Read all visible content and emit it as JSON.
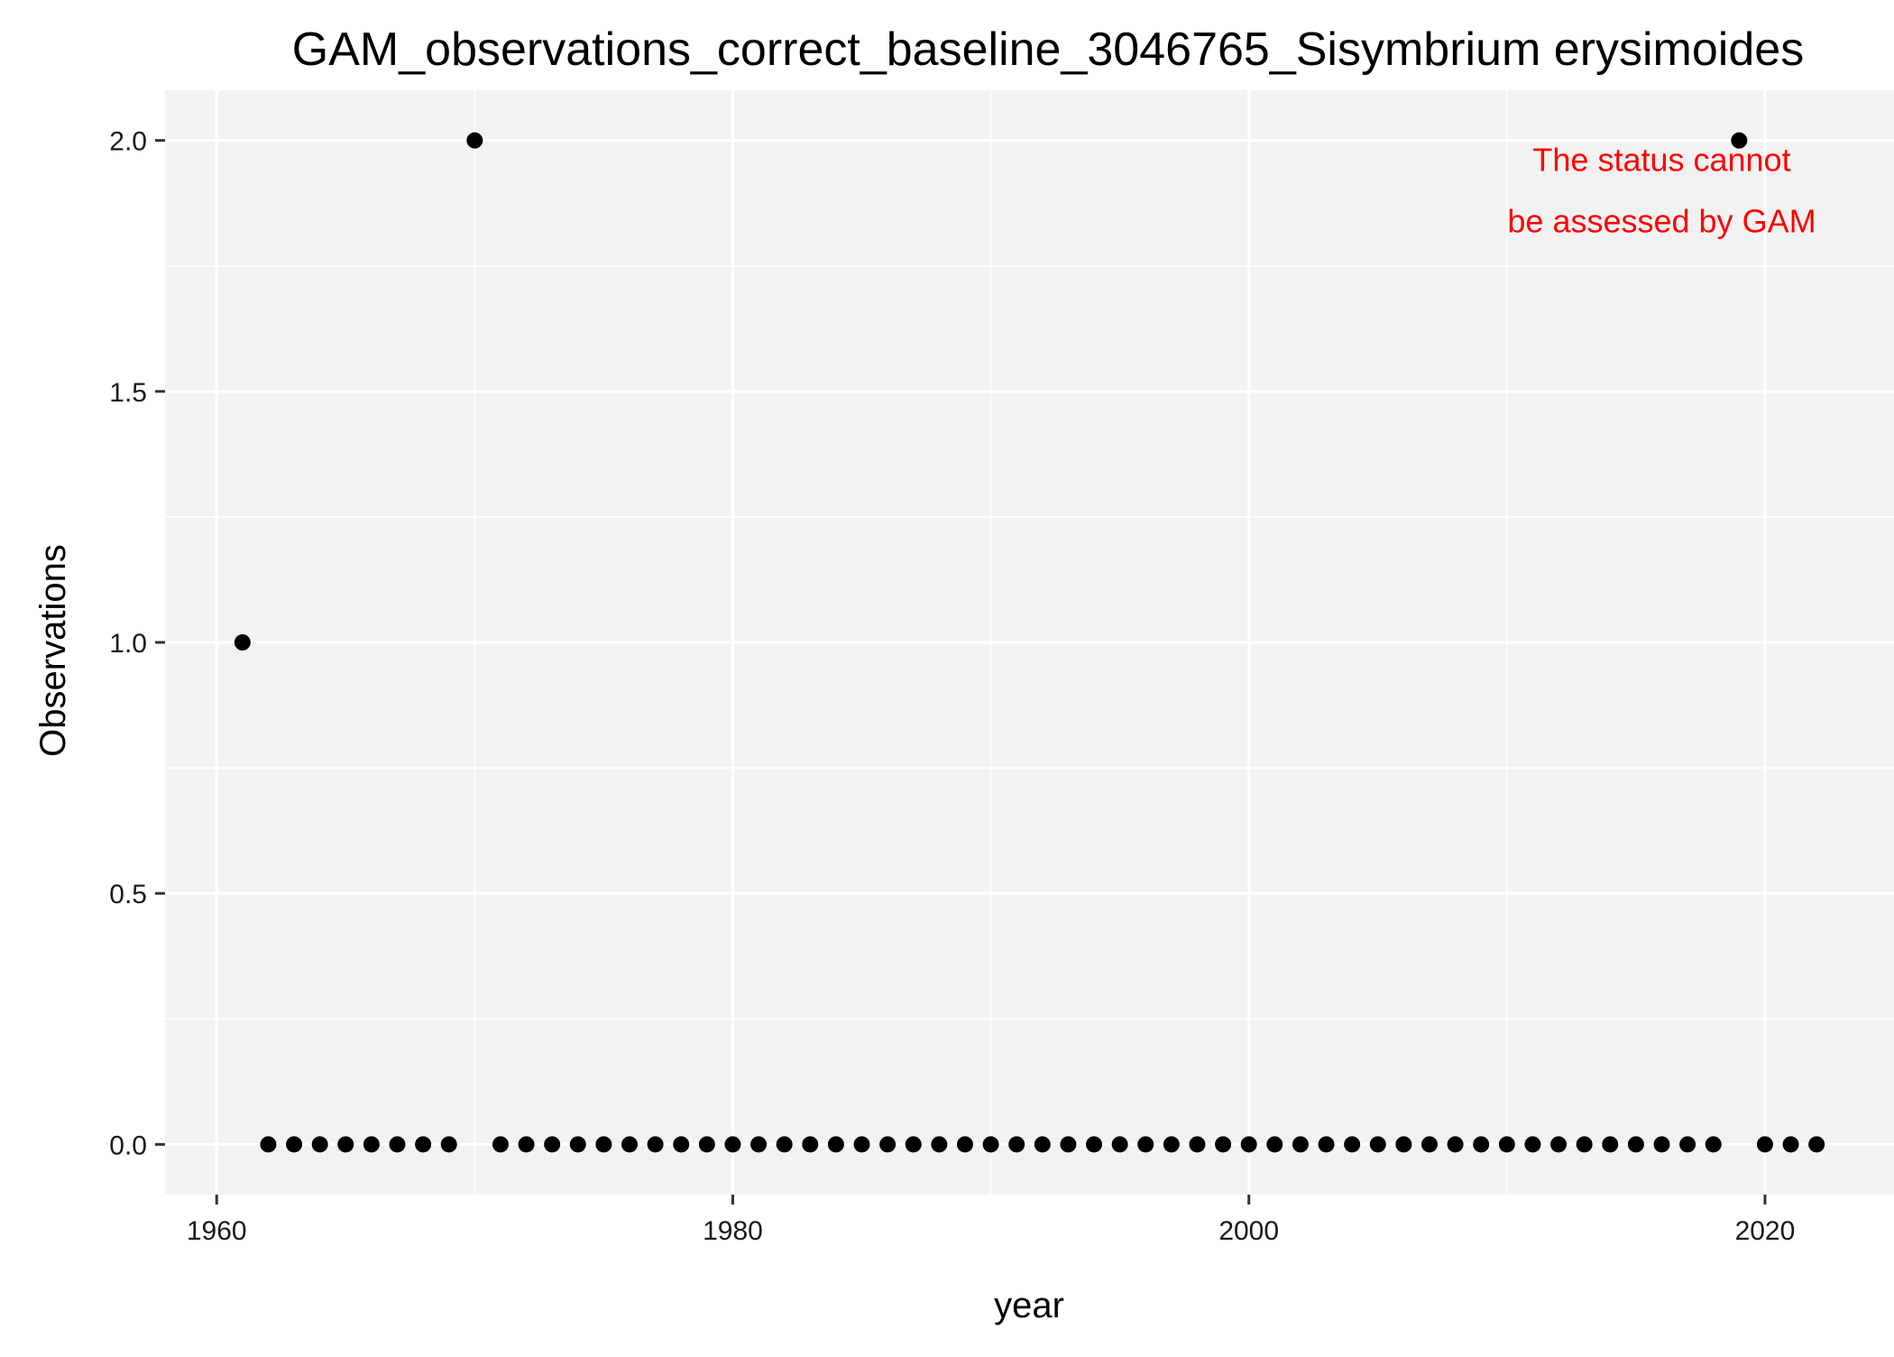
{
  "chart_data": {
    "type": "scatter",
    "title": "GAM_observations_correct_baseline_3046765_Sisymbrium erysimoides",
    "xlabel": "year",
    "ylabel": "Observations",
    "xlim": [
      1958,
      2025
    ],
    "ylim": [
      -0.1,
      2.1
    ],
    "x_ticks": [
      1960,
      1980,
      2000,
      2020
    ],
    "x_tick_labels": [
      "1960",
      "1980",
      "2000",
      "2020"
    ],
    "y_ticks": [
      0,
      0.5,
      1,
      1.5,
      2
    ],
    "y_tick_labels": [
      "0.0",
      "0.5",
      "1.0",
      "1.5",
      "2.0"
    ],
    "grid": true,
    "background": "#f2f2f2",
    "grid_color": "#ffffff",
    "point_color": "#000000",
    "annotation": {
      "lines": [
        "The status cannot",
        "be assessed by GAM"
      ],
      "color": "#ff0000",
      "anchor_x": 2016,
      "anchor_y": 1.9
    },
    "x": [
      1961,
      1962,
      1963,
      1964,
      1965,
      1966,
      1967,
      1968,
      1969,
      1970,
      1971,
      1972,
      1973,
      1974,
      1975,
      1976,
      1977,
      1978,
      1979,
      1980,
      1981,
      1982,
      1983,
      1984,
      1985,
      1986,
      1987,
      1988,
      1989,
      1990,
      1991,
      1992,
      1993,
      1994,
      1995,
      1996,
      1997,
      1998,
      1999,
      2000,
      2001,
      2002,
      2003,
      2004,
      2005,
      2006,
      2007,
      2008,
      2009,
      2010,
      2011,
      2012,
      2013,
      2014,
      2015,
      2016,
      2017,
      2018,
      2019,
      2020,
      2021,
      2022
    ],
    "y": [
      1,
      0,
      0,
      0,
      0,
      0,
      0,
      0,
      0,
      2,
      0,
      0,
      0,
      0,
      0,
      0,
      0,
      0,
      0,
      0,
      0,
      0,
      0,
      0,
      0,
      0,
      0,
      0,
      0,
      0,
      0,
      0,
      0,
      0,
      0,
      0,
      0,
      0,
      0,
      0,
      0,
      0,
      0,
      0,
      0,
      0,
      0,
      0,
      0,
      0,
      0,
      0,
      0,
      0,
      0,
      0,
      0,
      0,
      2,
      0,
      0,
      0
    ]
  }
}
